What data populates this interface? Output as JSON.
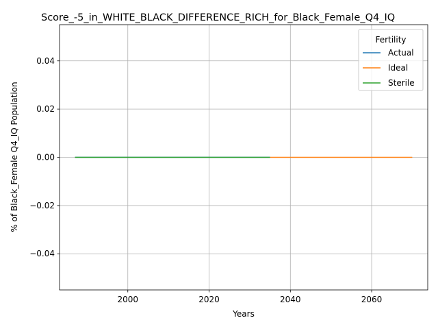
{
  "chart_data": {
    "type": "line",
    "title": "Score_-5_in_WHITE_BLACK_DIFFERENCE_RICH_for_Black_Female_Q4_IQ",
    "xlabel": "Years",
    "ylabel": "% of Black_Female Q4_IQ Population",
    "xlim": [
      1983.2,
      2073.8
    ],
    "ylim": [
      -0.055,
      0.055
    ],
    "x_ticks": [
      2000,
      2020,
      2040,
      2060
    ],
    "y_ticks": [
      -0.04,
      -0.02,
      0.0,
      0.02,
      0.04
    ],
    "x_tick_labels": [
      "2000",
      "2020",
      "2040",
      "2060"
    ],
    "y_tick_labels": [
      "−0.04",
      "−0.02",
      "0.00",
      "0.02",
      "0.04"
    ],
    "grid": true,
    "legend": {
      "title": "Fertility",
      "placement": "top-right"
    },
    "series": [
      {
        "name": "Actual",
        "color": "#1f77b4",
        "x": [
          1987,
          2035
        ],
        "y": [
          0,
          0
        ]
      },
      {
        "name": "Ideal",
        "color": "#ff7f0e",
        "x": [
          2035,
          2070
        ],
        "y": [
          0,
          0
        ]
      },
      {
        "name": "Sterile",
        "color": "#2ca02c",
        "x": [
          1987,
          2035
        ],
        "y": [
          0,
          0
        ]
      }
    ]
  }
}
